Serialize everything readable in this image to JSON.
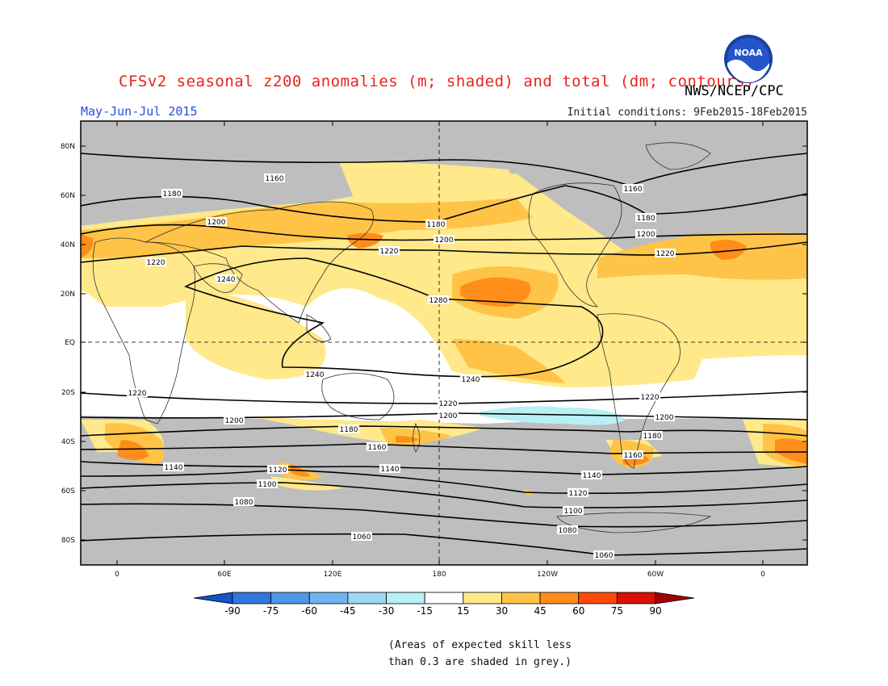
{
  "title": "CFSv2 seasonal z200 anomalies (m; shaded) and total (dm; contours)",
  "agency": "NWS/NCEP/CPC",
  "logo_text": "NOAA",
  "period": "May-Jun-Jul 2015",
  "initial_conditions": "Initial conditions: 9Feb2015-18Feb2015",
  "note_line1": "(Areas of expected skill less",
  "note_line2": "than 0.3 are shaded in grey.)",
  "colors": {
    "grey": "#bebebe",
    "land_outline": "#333333",
    "c15": "#ffe98a",
    "c30": "#ffc447",
    "c45": "#ff8d1a",
    "c60": "#ff4a0a",
    "c75": "#d81005",
    "c90": "#a40000",
    "n15": "#b7f0f5",
    "n30": "#9fd6f5",
    "n45": "#71b3f0",
    "n60": "#4f95e8",
    "n75": "#2f76de",
    "n90": "#1453c8"
  },
  "map": {
    "lat_labels": [
      "80N",
      "60N",
      "40N",
      "20N",
      "EQ",
      "20S",
      "40S",
      "60S",
      "80S"
    ],
    "lon_labels": [
      "0",
      "60E",
      "120E",
      "180",
      "120W",
      "60W",
      "0"
    ]
  },
  "colorbar": {
    "labels": [
      "-90",
      "-75",
      "-60",
      "-45",
      "-30",
      "-15",
      "15",
      "30",
      "45",
      "60",
      "75",
      "90"
    ],
    "colors": [
      "#1453c8",
      "#2f76de",
      "#4f95e8",
      "#71b3f0",
      "#9fd6f5",
      "#b7f0f5",
      "#ffffff",
      "#ffe98a",
      "#ffc447",
      "#ff8d1a",
      "#ff4a0a",
      "#d81005",
      "#a40000"
    ]
  },
  "contour_labels": [
    "1160",
    "1160",
    "1180",
    "1180",
    "1180",
    "1200",
    "1200",
    "1200",
    "1220",
    "1220",
    "1220",
    "1240",
    "1280",
    "1240",
    "1240",
    "1220",
    "1220",
    "1220",
    "1200",
    "1200",
    "1200",
    "1180",
    "1180",
    "1160",
    "1160",
    "1140",
    "1140",
    "1140",
    "1120",
    "1120",
    "1100",
    "1100",
    "1080",
    "1080",
    "1060",
    "1060"
  ]
}
